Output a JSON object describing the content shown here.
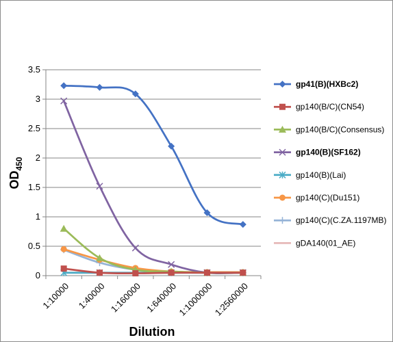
{
  "chart_data": {
    "type": "line",
    "title": "",
    "xlabel": "Dilution",
    "ylabel": "OD",
    "ylabel_subscript": "450",
    "ylim": [
      0,
      3.5
    ],
    "yticks": [
      "0",
      "0.5",
      "1",
      "1.5",
      "2",
      "2.5",
      "3",
      "3.5"
    ],
    "categories": [
      "1:10000",
      "1:40000",
      "1:160000",
      "1:640000",
      "1:1000000",
      "1:2560000"
    ],
    "grid": "horizontal",
    "legend_position": "right",
    "series": [
      {
        "name": "gp41(B)(HXBc2)",
        "color": "#4472c4",
        "marker": "diamond",
        "bold": true,
        "values": [
          3.23,
          3.2,
          3.09,
          2.2,
          1.07,
          0.87
        ]
      },
      {
        "name": "gp140(B/C)(CN54)",
        "color": "#c0504d",
        "marker": "square",
        "bold": false,
        "values": [
          0.12,
          0.05,
          0.04,
          0.05,
          0.05,
          0.05
        ]
      },
      {
        "name": "gp140(B/C)(Consensus)",
        "color": "#9bbb59",
        "marker": "triangle",
        "bold": false,
        "values": [
          0.8,
          0.3,
          0.1,
          0.07,
          0.05,
          0.05
        ]
      },
      {
        "name": "gp140(B)(SF162)",
        "color": "#8064a2",
        "marker": "x",
        "bold": true,
        "values": [
          2.97,
          1.52,
          0.47,
          0.19,
          0.05,
          0.05
        ]
      },
      {
        "name": "gp140(B)(Lai)",
        "color": "#4bacc6",
        "marker": "star",
        "bold": false,
        "values": [
          0.05,
          0.05,
          0.05,
          0.05,
          0.05,
          0.05
        ]
      },
      {
        "name": "gp140(C)(Du151)",
        "color": "#f79646",
        "marker": "circle",
        "bold": false,
        "values": [
          0.45,
          0.27,
          0.13,
          0.07,
          0.06,
          0.06
        ]
      },
      {
        "name": "gp140(C)(C.ZA.1197MB)",
        "color": "#95b3d7",
        "marker": "plus",
        "bold": false,
        "values": [
          0.44,
          0.22,
          0.1,
          0.06,
          0.05,
          0.05
        ]
      },
      {
        "name": "gDA140(01_AE)",
        "color": "#e6b9b8",
        "marker": "none",
        "bold": false,
        "values": [
          0.05,
          0.05,
          0.05,
          0.05,
          0.05,
          0.05
        ]
      }
    ]
  }
}
